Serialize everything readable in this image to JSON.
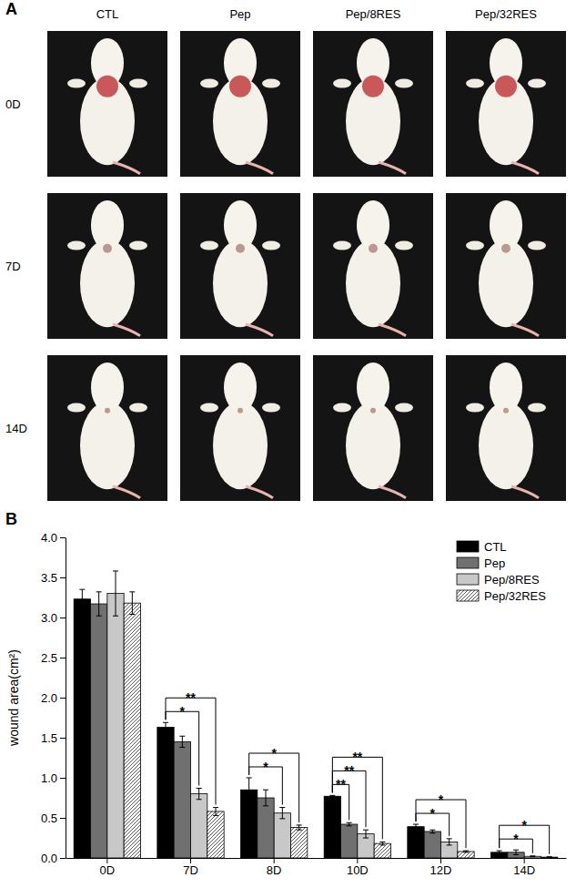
{
  "panel_a": {
    "label": "A",
    "columns": [
      "CTL",
      "Pep",
      "Pep/8RES",
      "Pep/32RES"
    ],
    "rows": [
      "0D",
      "7D",
      "14D"
    ]
  },
  "panel_b": {
    "label": "B"
  },
  "chart_data": {
    "type": "bar",
    "y_label": "wound area(cm²)",
    "categories": [
      "0D",
      "7D",
      "8D",
      "10D",
      "12D",
      "14D"
    ],
    "series": [
      {
        "name": "CTL",
        "color": "#000000",
        "values": [
          3.23,
          1.63,
          0.85,
          0.77,
          0.39,
          0.07
        ],
        "errors": [
          0.12,
          0.06,
          0.15,
          0.01,
          0.03,
          0.02
        ]
      },
      {
        "name": "Pep",
        "color": "#707070",
        "values": [
          3.17,
          1.45,
          0.75,
          0.42,
          0.33,
          0.07
        ],
        "errors": [
          0.15,
          0.07,
          0.1,
          0.02,
          0.02,
          0.03
        ]
      },
      {
        "name": "Pep/8RES",
        "color": "#c8c8c8",
        "values": [
          3.3,
          0.8,
          0.56,
          0.3,
          0.2,
          0.02
        ],
        "errors": [
          0.28,
          0.07,
          0.07,
          0.05,
          0.04,
          0.005
        ]
      },
      {
        "name": "Pep/32RES",
        "color": "#ffffff",
        "line_style": "hatched",
        "values": [
          3.18,
          0.58,
          0.38,
          0.18,
          0.08,
          0.01
        ],
        "errors": [
          0.14,
          0.05,
          0.03,
          0.02,
          0.01,
          0.005
        ]
      }
    ],
    "ylim": [
      0,
      4
    ],
    "yticks": [
      {
        "value": 0,
        "label": "0.0"
      },
      {
        "value": 0.5,
        "label": "0.5"
      },
      {
        "value": 1,
        "label": "1.0"
      },
      {
        "value": 1.5,
        "label": "1.5"
      },
      {
        "value": 2,
        "label": "2.0"
      },
      {
        "value": 2.5,
        "label": "2.5"
      },
      {
        "value": 3,
        "label": "3.0"
      },
      {
        "value": 3.5,
        "label": "3.5"
      },
      {
        "value": 4,
        "label": "4.0"
      }
    ],
    "legend": "top-right",
    "annotations": [
      {
        "x": "7D",
        "from": "CTL",
        "to": "Pep/8RES",
        "text": "*"
      },
      {
        "x": "7D",
        "from": "CTL",
        "to": "Pep/32RES",
        "text": "**"
      },
      {
        "x": "8D",
        "from": "CTL",
        "to": "Pep/8RES",
        "text": "*"
      },
      {
        "x": "8D",
        "from": "CTL",
        "to": "Pep/32RES",
        "text": "*"
      },
      {
        "x": "10D",
        "from": "CTL",
        "to": "Pep",
        "text": "**"
      },
      {
        "x": "10D",
        "from": "CTL",
        "to": "Pep/8RES",
        "text": "**"
      },
      {
        "x": "10D",
        "from": "CTL",
        "to": "Pep/32RES",
        "text": "**"
      },
      {
        "x": "12D",
        "from": "CTL",
        "to": "Pep/8RES",
        "text": "*"
      },
      {
        "x": "12D",
        "from": "CTL",
        "to": "Pep/32RES",
        "text": "*"
      },
      {
        "x": "14D",
        "from": "CTL",
        "to": "Pep/8RES",
        "text": "*"
      },
      {
        "x": "14D",
        "from": "CTL",
        "to": "Pep/32RES",
        "text": "*"
      }
    ]
  }
}
